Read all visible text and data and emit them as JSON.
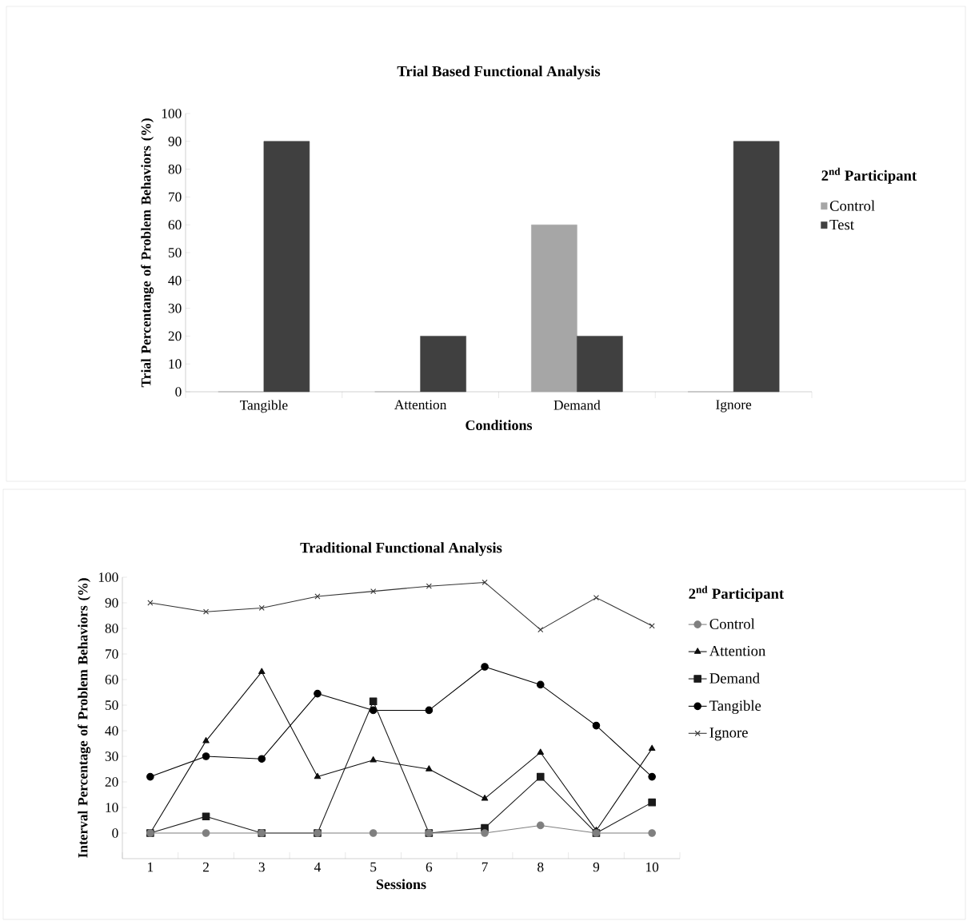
{
  "chart_data": [
    {
      "type": "bar",
      "title": "Trial Based Functional Analysis",
      "xlabel": "Conditions",
      "ylabel": "Trial Percentange of Problem Behaviors (%)",
      "legend_title": "2$^{nd}$ Participant",
      "categories": [
        "Tangible",
        "Attention",
        "Demand",
        "Ignore"
      ],
      "series": [
        {
          "name": "Control",
          "color": "#a6a6a6",
          "values": [
            0,
            0,
            60,
            0
          ]
        },
        {
          "name": "Test",
          "color": "#404040",
          "values": [
            90,
            20,
            20,
            90
          ]
        }
      ],
      "ylim": [
        0,
        100
      ],
      "yticks": [
        0,
        10,
        20,
        30,
        40,
        50,
        60,
        70,
        80,
        90,
        100
      ],
      "grid": false,
      "legend": "right"
    },
    {
      "type": "line",
      "title": "Traditional Functional Analysis",
      "xlabel": "Sessions",
      "ylabel": "Interval Percentage of Problem Behaviors (%)",
      "legend_title": "2$^{nd}$ Participant",
      "categories": [
        "1",
        "2",
        "3",
        "4",
        "5",
        "6",
        "7",
        "8",
        "9",
        "10"
      ],
      "series": [
        {
          "name": "Control",
          "color": "#7f7f7f",
          "marker": "circle",
          "values": [
            0,
            0,
            0,
            0,
            0,
            0,
            0,
            3,
            0,
            0
          ]
        },
        {
          "name": "Attention",
          "color": "#0d0d0d",
          "marker": "triangle",
          "values": [
            0,
            36,
            63,
            22,
            28.5,
            25,
            13.5,
            31.5,
            1,
            33
          ]
        },
        {
          "name": "Demand",
          "color": "#1a1a1a",
          "marker": "square",
          "values": [
            0,
            6.5,
            0,
            0,
            51.5,
            0,
            2,
            22,
            0,
            12
          ]
        },
        {
          "name": "Tangible",
          "color": "#000000",
          "marker": "circle",
          "values": [
            22,
            30,
            29,
            54.5,
            48,
            48,
            65,
            58,
            42,
            22
          ]
        },
        {
          "name": "Ignore",
          "color": "#333333",
          "marker": "cross",
          "values": [
            90,
            86.5,
            88,
            92.5,
            94.5,
            96.5,
            98,
            79.5,
            92,
            81
          ]
        }
      ],
      "ylim": [
        -10,
        100
      ],
      "yticks": [
        0,
        10,
        20,
        30,
        40,
        50,
        60,
        70,
        80,
        90,
        100
      ],
      "grid": false,
      "legend": "right",
      "line_style": "solid"
    }
  ]
}
